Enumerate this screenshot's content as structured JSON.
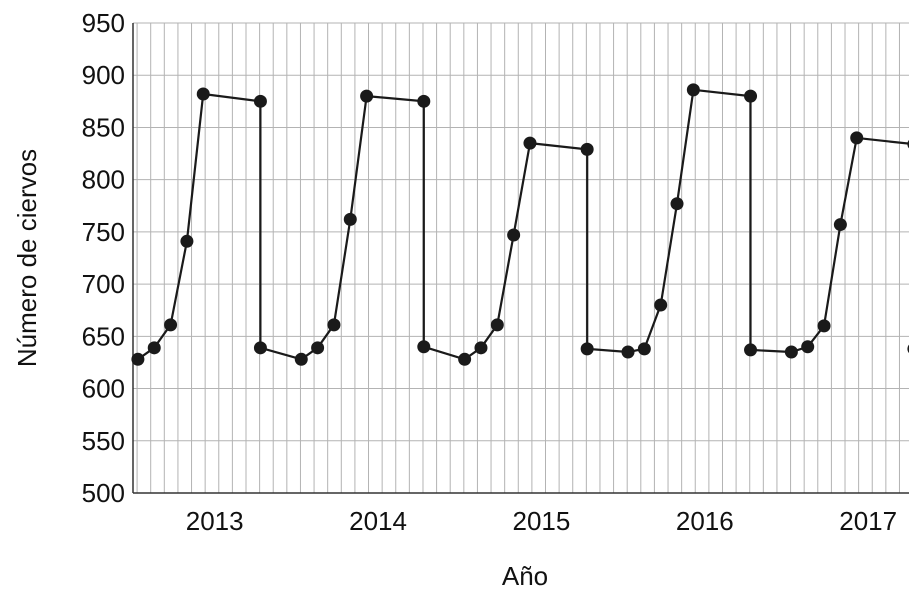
{
  "chart_data": {
    "type": "line",
    "title": "",
    "xlabel": "Año",
    "ylabel": "Número de ciervos",
    "ylim": [
      500,
      950
    ],
    "yticks": [
      500,
      550,
      600,
      650,
      700,
      750,
      800,
      850,
      900,
      950
    ],
    "xlim": [
      2012.55,
      2017.3
    ],
    "xticks": [
      {
        "label": "2013",
        "value": 2013.05
      },
      {
        "label": "2014",
        "value": 2014.05
      },
      {
        "label": "2015",
        "value": 2015.05
      },
      {
        "label": "2016",
        "value": 2016.05
      },
      {
        "label": "2017",
        "value": 2017.05
      }
    ],
    "grid": true,
    "legend": "none",
    "colors": {
      "line": "#1a1a1a",
      "grid": "#b3b3b3",
      "axis": "#333333"
    },
    "series": [
      {
        "x": [
          2012.58,
          2012.68,
          2012.78,
          2012.88,
          2012.98,
          2013.33,
          2013.33,
          2013.58,
          2013.68,
          2013.78,
          2013.88,
          2013.98,
          2014.33,
          2014.33,
          2014.58,
          2014.68,
          2014.78,
          2014.88,
          2014.98,
          2015.33,
          2015.33,
          2015.58,
          2015.68,
          2015.78,
          2015.88,
          2015.98,
          2016.33,
          2016.33,
          2016.58,
          2016.68,
          2016.78,
          2016.88,
          2016.98,
          2017.33,
          2017.33
        ],
        "y": [
          628,
          639,
          661,
          741,
          882,
          875,
          639,
          628,
          639,
          661,
          762,
          880,
          875,
          640,
          628,
          639,
          661,
          747,
          835,
          829,
          638,
          635,
          638,
          680,
          777,
          886,
          880,
          637,
          635,
          640,
          660,
          757,
          840,
          834,
          638
        ]
      }
    ]
  }
}
